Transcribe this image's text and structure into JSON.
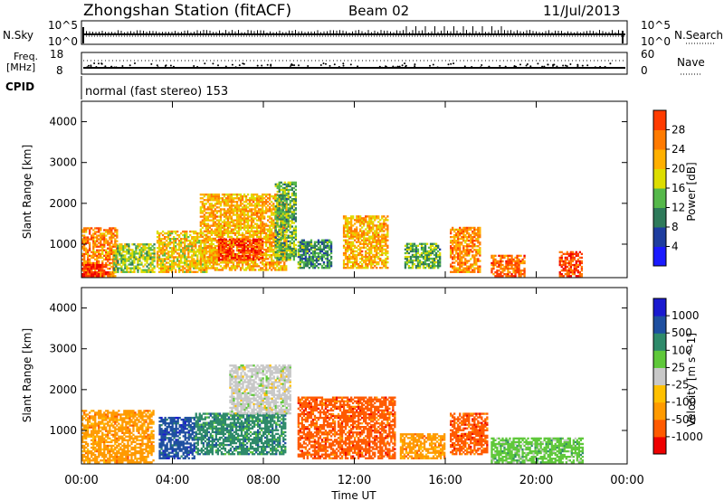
{
  "header": {
    "station": "Zhongshan Station (fitACF)",
    "beam": "Beam 02",
    "date": "11/Jul/2013"
  },
  "panels": {
    "nsky": {
      "label": "N.Sky",
      "tick_top": "10^5",
      "tick_bot": "10^0"
    },
    "nsearch": {
      "label": "N.Search",
      "tick_top": "10^5",
      "tick_bot": "10^0"
    },
    "freq": {
      "label_1": "Freq.",
      "label_2": "[MHz]",
      "tick_top": "18",
      "tick_bot": "8"
    },
    "nave": {
      "label": "Nave",
      "tick_top": "60",
      "tick_bot": "0"
    },
    "cpid": {
      "label": "CPID",
      "value": "normal (fast stereo) 153"
    }
  },
  "colors": {
    "power": [
      "#1a1aff",
      "#1e3d9f",
      "#2e7a5a",
      "#55b84a",
      "#dddd00",
      "#ffb000",
      "#ff7a00",
      "#ff3b00",
      "#ee0000"
    ],
    "velocity": [
      "#ee0000",
      "#ff5a00",
      "#ff9a00",
      "#ffc000",
      "#c8c8c8",
      "#5fc83a",
      "#2e8a6a",
      "#1e4fa0",
      "#1a1ad0"
    ]
  },
  "chart_data": [
    {
      "type": "heatmap",
      "name": "Power",
      "xlabel": "Time UT",
      "ylabel": "Slant Range [km]",
      "xlim": [
        "00:00",
        "24:00"
      ],
      "ylim": [
        180,
        4500
      ],
      "x_ticks": [
        "00:00",
        "04:00",
        "08:00",
        "12:00",
        "16:00",
        "20:00",
        "00:00"
      ],
      "y_ticks": [
        1000,
        2000,
        3000,
        4000
      ],
      "colorbar": {
        "label": "Power [dB]",
        "ticks": [
          "28",
          "24",
          "20",
          "16",
          "12",
          "8",
          "4"
        ],
        "range": [
          0,
          32
        ]
      },
      "regions": [
        {
          "t0": 0.0,
          "t1": 1.6,
          "r0": 200,
          "r1": 1400,
          "v": 22
        },
        {
          "t0": 0.0,
          "t1": 1.2,
          "r0": 200,
          "r1": 500,
          "v": 29
        },
        {
          "t0": 1.4,
          "t1": 3.2,
          "r0": 300,
          "r1": 1000,
          "v": 14
        },
        {
          "t0": 3.3,
          "t1": 5.5,
          "r0": 300,
          "r1": 1300,
          "v": 18
        },
        {
          "t0": 5.2,
          "t1": 9.0,
          "r0": 350,
          "r1": 2200,
          "v": 20
        },
        {
          "t0": 6.0,
          "t1": 8.0,
          "r0": 600,
          "r1": 1100,
          "v": 27
        },
        {
          "t0": 8.5,
          "t1": 9.4,
          "r0": 600,
          "r1": 2500,
          "v": 12
        },
        {
          "t0": 9.5,
          "t1": 11.0,
          "r0": 400,
          "r1": 1100,
          "v": 10
        },
        {
          "t0": 11.5,
          "t1": 13.5,
          "r0": 400,
          "r1": 1700,
          "v": 20
        },
        {
          "t0": 14.2,
          "t1": 15.8,
          "r0": 400,
          "r1": 1000,
          "v": 12
        },
        {
          "t0": 16.2,
          "t1": 17.5,
          "r0": 300,
          "r1": 1400,
          "v": 22
        },
        {
          "t0": 18.0,
          "t1": 19.5,
          "r0": 200,
          "r1": 700,
          "v": 24
        },
        {
          "t0": 21.0,
          "t1": 22.0,
          "r0": 200,
          "r1": 800,
          "v": 26
        }
      ]
    },
    {
      "type": "heatmap",
      "name": "Velocity",
      "xlabel": "Time UT",
      "ylabel": "Slant Range [km]",
      "xlim": [
        "00:00",
        "24:00"
      ],
      "ylim": [
        180,
        4500
      ],
      "x_ticks": [
        "00:00",
        "04:00",
        "08:00",
        "12:00",
        "16:00",
        "20:00",
        "00:00"
      ],
      "y_ticks": [
        1000,
        2000,
        3000,
        4000
      ],
      "colorbar": {
        "label": "Velocity [m s^-1]",
        "ticks": [
          "1000",
          "500",
          "100",
          "25",
          "-25",
          "-100",
          "-500",
          "-1000"
        ]
      },
      "regions": [
        {
          "t0": 0.0,
          "t1": 3.2,
          "r0": 200,
          "r1": 1500,
          "v": -100
        },
        {
          "t0": 3.4,
          "t1": 5.0,
          "r0": 300,
          "r1": 1300,
          "v": 500
        },
        {
          "t0": 5.0,
          "t1": 9.0,
          "r0": 400,
          "r1": 1400,
          "v": 100
        },
        {
          "t0": 6.5,
          "t1": 9.2,
          "r0": 1400,
          "r1": 2600,
          "v": 25
        },
        {
          "t0": 9.5,
          "t1": 13.8,
          "r0": 300,
          "r1": 1800,
          "v": -500
        },
        {
          "t0": 14.0,
          "t1": 16.0,
          "r0": 300,
          "r1": 900,
          "v": -100
        },
        {
          "t0": 16.2,
          "t1": 17.8,
          "r0": 400,
          "r1": 1400,
          "v": -500
        },
        {
          "t0": 18.0,
          "t1": 22.0,
          "r0": 200,
          "r1": 800,
          "v": 50
        }
      ]
    }
  ]
}
